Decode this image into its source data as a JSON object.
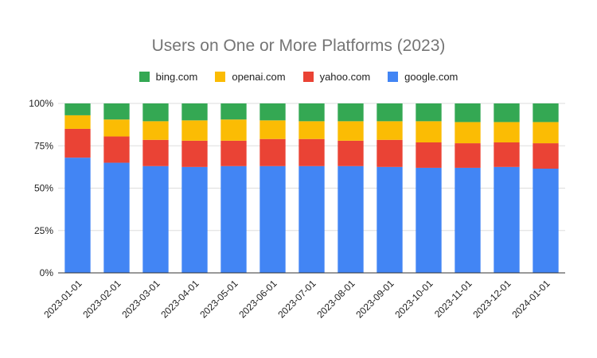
{
  "chart_data": {
    "type": "bar",
    "stacked": "percent",
    "title": "Users on One or More Platforms (2023)",
    "xlabel": "",
    "ylabel": "",
    "ylim": [
      0,
      100
    ],
    "y_ticks": [
      "0%",
      "25%",
      "50%",
      "75%",
      "100%"
    ],
    "grid": true,
    "legend_position": "top",
    "categories": [
      "2023-01-01",
      "2023-02-01",
      "2023-03-01",
      "2023-04-01",
      "2023-05-01",
      "2023-06-01",
      "2023-07-01",
      "2023-08-01",
      "2023-09-01",
      "2023-10-01",
      "2023-11-01",
      "2023-12-01",
      "2024-01-01"
    ],
    "series": [
      {
        "name": "google.com",
        "color": "#4285f4",
        "values": [
          68,
          65,
          63,
          62.5,
          63,
          63,
          63,
          63,
          62.5,
          62,
          62,
          62.5,
          61.5
        ]
      },
      {
        "name": "yahoo.com",
        "color": "#ea4335",
        "values": [
          17,
          15.5,
          15.5,
          15.5,
          15,
          16,
          16,
          15,
          16,
          15,
          14.5,
          14.5,
          15
        ]
      },
      {
        "name": "openai.com",
        "color": "#fbbc04",
        "values": [
          8,
          10,
          11,
          12,
          12.5,
          11,
          10.5,
          11.5,
          11,
          12.5,
          12.5,
          12,
          12.5
        ]
      },
      {
        "name": "bing.com",
        "color": "#34a853",
        "values": [
          7,
          9.5,
          10.5,
          10,
          9.5,
          10,
          10.5,
          10.5,
          10.5,
          10.5,
          11,
          11,
          11
        ]
      }
    ],
    "legend_order": [
      "bing.com",
      "openai.com",
      "yahoo.com",
      "google.com"
    ]
  }
}
